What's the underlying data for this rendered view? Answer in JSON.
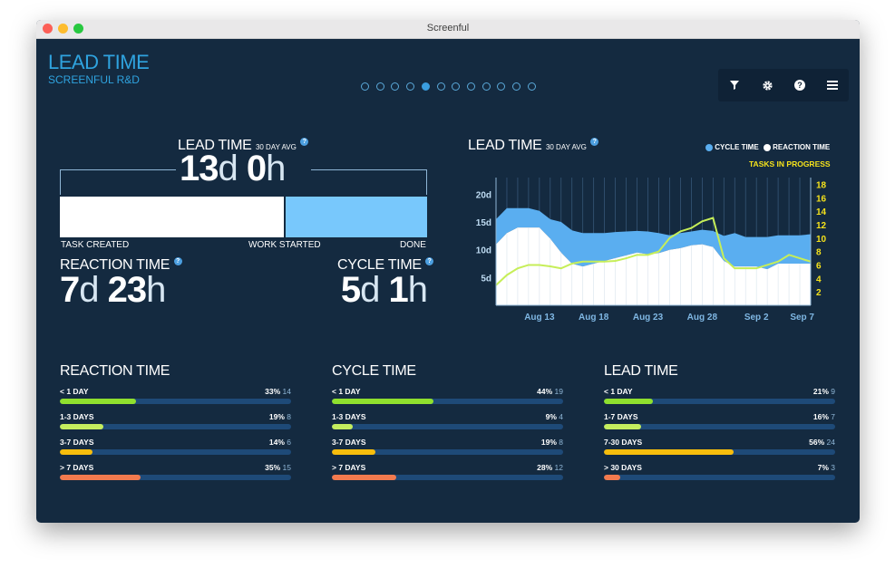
{
  "window": {
    "title": "Screenful"
  },
  "header": {
    "title": "LEAD TIME",
    "subtitle": "SCREENFUL R&D",
    "pages": {
      "count": 12,
      "active_index": 4
    },
    "toolbar": [
      {
        "icon": "filter-icon",
        "glyph": "▼"
      },
      {
        "icon": "gear-icon",
        "glyph": "⚙"
      },
      {
        "icon": "help-icon",
        "glyph": "?"
      },
      {
        "icon": "menu-icon",
        "glyph": "≡"
      }
    ]
  },
  "summary": {
    "lead_time": {
      "label": "LEAD TIME",
      "avg": "30 DAY AVG",
      "help": "?",
      "d": "13",
      "d_unit": "d",
      "h": "0",
      "h_unit": "h"
    },
    "timeline": {
      "start": "TASK CREATED",
      "middle": "WORK STARTED",
      "end": "DONE",
      "reaction_fraction": 0.61
    },
    "reaction_time": {
      "label": "REACTION TIME",
      "help": "?",
      "d": "7",
      "d_unit": "d",
      "h": "23",
      "h_unit": "h"
    },
    "cycle_time": {
      "label": "CYCLE TIME",
      "help": "?",
      "d": "5",
      "d_unit": "d",
      "h": "1",
      "h_unit": "h"
    }
  },
  "trend": {
    "title": "LEAD TIME",
    "avg": "30 DAY AVG",
    "help": "?",
    "legend": {
      "cycle": "CYCLE TIME",
      "reaction": "REACTION TIME",
      "tasks": "TASKS IN PROGRESS"
    },
    "colors": {
      "cycle": "#5aaef0",
      "reaction": "#ffffff",
      "tasks": "#c6ee58"
    }
  },
  "chart_data": {
    "type": "area",
    "x_ticks": [
      "Aug 13",
      "Aug 18",
      "Aug 23",
      "Aug 28",
      "Sep 2",
      "Sep 7"
    ],
    "y_ticks": [
      "20d",
      "15d",
      "10d",
      "5d"
    ],
    "y_right_ticks": [
      "18",
      "16",
      "14",
      "12",
      "10",
      "8",
      "6",
      "4",
      "2"
    ],
    "ylim": [
      0,
      23
    ],
    "y_right_lim": [
      0,
      19
    ],
    "x_day_range": [
      9,
      38
    ],
    "series": [
      {
        "name": "REACTION TIME",
        "x": [
          9,
          10,
          11,
          12,
          13,
          14,
          15,
          16,
          17,
          18,
          19,
          20,
          21,
          22,
          23,
          24,
          25,
          26,
          27,
          28,
          29,
          30,
          31,
          32,
          33,
          34,
          35,
          36,
          37,
          38
        ],
        "values": [
          11,
          13,
          14,
          14,
          14,
          12,
          9.5,
          7.5,
          7,
          7.5,
          8,
          8.5,
          9,
          9.5,
          9.2,
          9.4,
          10,
          10.3,
          10.8,
          11,
          10.5,
          8,
          7,
          7,
          7,
          6.5,
          7.5,
          7.5,
          7.5,
          7.5
        ]
      },
      {
        "name": "CYCLE TIME",
        "x": [
          9,
          10,
          11,
          12,
          13,
          14,
          15,
          16,
          17,
          18,
          19,
          20,
          21,
          22,
          23,
          24,
          25,
          26,
          27,
          28,
          29,
          30,
          31,
          32,
          33,
          34,
          35,
          36,
          37,
          38
        ],
        "values": [
          15.5,
          17.5,
          17.5,
          17.5,
          17,
          15.5,
          15,
          13.5,
          13,
          13,
          13,
          13.2,
          13.3,
          13.4,
          13.3,
          13,
          12.6,
          13,
          13.3,
          13.6,
          13.4,
          12.5,
          13,
          12.3,
          12.3,
          12.3,
          12.6,
          12.6,
          12.6,
          12.8
        ]
      },
      {
        "name": "TASKS IN PROGRESS",
        "axis": "right",
        "x": [
          9,
          10,
          11,
          12,
          13,
          14,
          15,
          16,
          17,
          18,
          19,
          20,
          21,
          22,
          23,
          24,
          25,
          26,
          27,
          28,
          29,
          30,
          31,
          32,
          33,
          34,
          35,
          36,
          37,
          38
        ],
        "values": [
          3,
          4.5,
          5.5,
          6,
          6,
          5.8,
          5.5,
          6.2,
          6.5,
          6.5,
          6.5,
          6.6,
          7,
          7.5,
          7.5,
          8,
          10,
          11,
          11.5,
          12.5,
          13,
          7,
          5.5,
          5.5,
          5.5,
          6,
          6.5,
          7.5,
          7,
          6.5
        ]
      }
    ]
  },
  "distributions": [
    {
      "title": "REACTION TIME",
      "rows": [
        {
          "label": "< 1 DAY",
          "pct": "33%",
          "count": "14",
          "fraction": 0.33,
          "color": "#8fe02e"
        },
        {
          "label": "1-3 DAYS",
          "pct": "19%",
          "count": "8",
          "fraction": 0.19,
          "color": "#c4ed5e"
        },
        {
          "label": "3-7 DAYS",
          "pct": "14%",
          "count": "6",
          "fraction": 0.14,
          "color": "#f7bd0c"
        },
        {
          "label": "> 7 DAYS",
          "pct": "35%",
          "count": "15",
          "fraction": 0.35,
          "color": "#f27a4e"
        }
      ]
    },
    {
      "title": "CYCLE TIME",
      "rows": [
        {
          "label": "< 1 DAY",
          "pct": "44%",
          "count": "19",
          "fraction": 0.44,
          "color": "#8fe02e"
        },
        {
          "label": "1-3 DAYS",
          "pct": "9%",
          "count": "4",
          "fraction": 0.09,
          "color": "#c4ed5e"
        },
        {
          "label": "3-7 DAYS",
          "pct": "19%",
          "count": "8",
          "fraction": 0.19,
          "color": "#f7bd0c"
        },
        {
          "label": "> 7 DAYS",
          "pct": "28%",
          "count": "12",
          "fraction": 0.28,
          "color": "#f27a4e"
        }
      ]
    },
    {
      "title": "LEAD TIME",
      "rows": [
        {
          "label": "< 1 DAY",
          "pct": "21%",
          "count": "9",
          "fraction": 0.21,
          "color": "#8fe02e"
        },
        {
          "label": "1-7 DAYS",
          "pct": "16%",
          "count": "7",
          "fraction": 0.16,
          "color": "#c4ed5e"
        },
        {
          "label": "7-30 DAYS",
          "pct": "56%",
          "count": "24",
          "fraction": 0.56,
          "color": "#f7bd0c"
        },
        {
          "label": "> 30 DAYS",
          "pct": "7%",
          "count": "3",
          "fraction": 0.07,
          "color": "#f27a4e"
        }
      ]
    }
  ]
}
